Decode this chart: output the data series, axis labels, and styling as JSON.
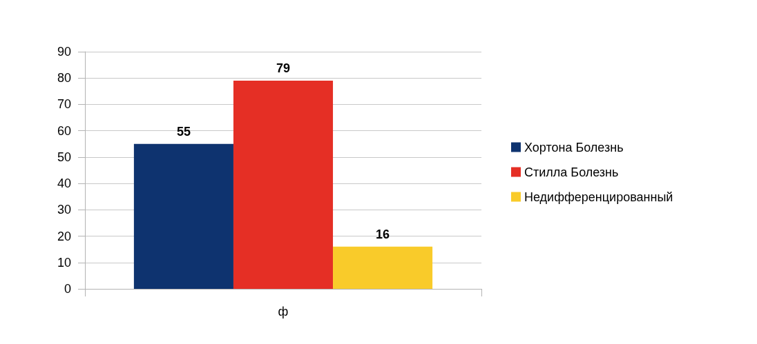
{
  "chart_data": {
    "type": "bar",
    "categories": [
      "ф"
    ],
    "series": [
      {
        "name": "Хортона Болезнь",
        "color": "#0e336f",
        "values": [
          55
        ]
      },
      {
        "name": "Стилла Болезнь",
        "color": "#e52f25",
        "values": [
          79
        ]
      },
      {
        "name": "Недифференцированный",
        "color": "#f9cb2a",
        "values": [
          16
        ]
      }
    ],
    "ylim": [
      0,
      90
    ],
    "yticks": [
      0,
      10,
      20,
      30,
      40,
      50,
      60,
      70,
      80,
      90
    ],
    "grid": "y",
    "legend": "right",
    "data_labels": true
  }
}
